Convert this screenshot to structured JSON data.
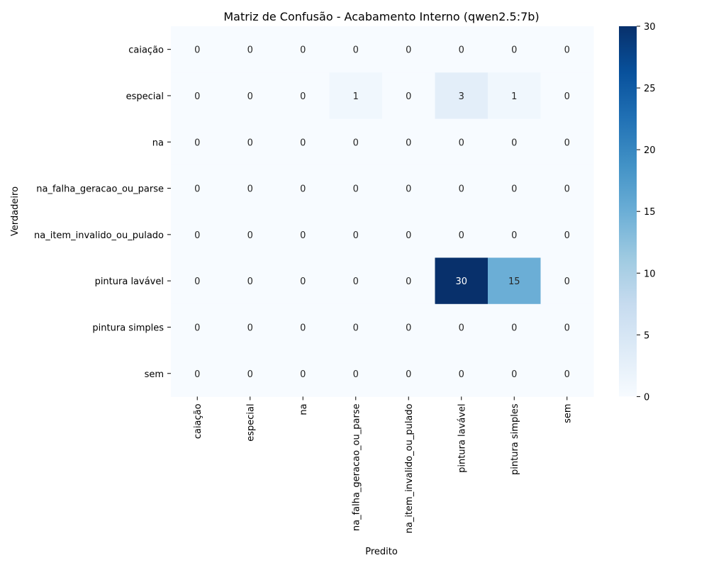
{
  "chart_data": {
    "type": "heatmap",
    "title": "Matriz de Confusão - Acabamento Interno (qwen2.5:7b)",
    "xlabel": "Predito",
    "ylabel": "Verdadeiro",
    "x_categories": [
      "caiação",
      "especial",
      "na",
      "na_falha_geracao_ou_parse",
      "na_item_invalido_ou_pulado",
      "pintura lavável",
      "pintura simples",
      "sem"
    ],
    "y_categories": [
      "caiação",
      "especial",
      "na",
      "na_falha_geracao_ou_parse",
      "na_item_invalido_ou_pulado",
      "pintura lavável",
      "pintura simples",
      "sem"
    ],
    "values": [
      [
        0,
        0,
        0,
        0,
        0,
        0,
        0,
        0
      ],
      [
        0,
        0,
        0,
        1,
        0,
        3,
        1,
        0
      ],
      [
        0,
        0,
        0,
        0,
        0,
        0,
        0,
        0
      ],
      [
        0,
        0,
        0,
        0,
        0,
        0,
        0,
        0
      ],
      [
        0,
        0,
        0,
        0,
        0,
        0,
        0,
        0
      ],
      [
        0,
        0,
        0,
        0,
        0,
        30,
        15,
        0
      ],
      [
        0,
        0,
        0,
        0,
        0,
        0,
        0,
        0
      ],
      [
        0,
        0,
        0,
        0,
        0,
        0,
        0,
        0
      ]
    ],
    "colorscale": "Blues",
    "vmin": 0,
    "vmax": 30,
    "colorbar_ticks": [
      0,
      5,
      10,
      15,
      20,
      25,
      30
    ]
  }
}
